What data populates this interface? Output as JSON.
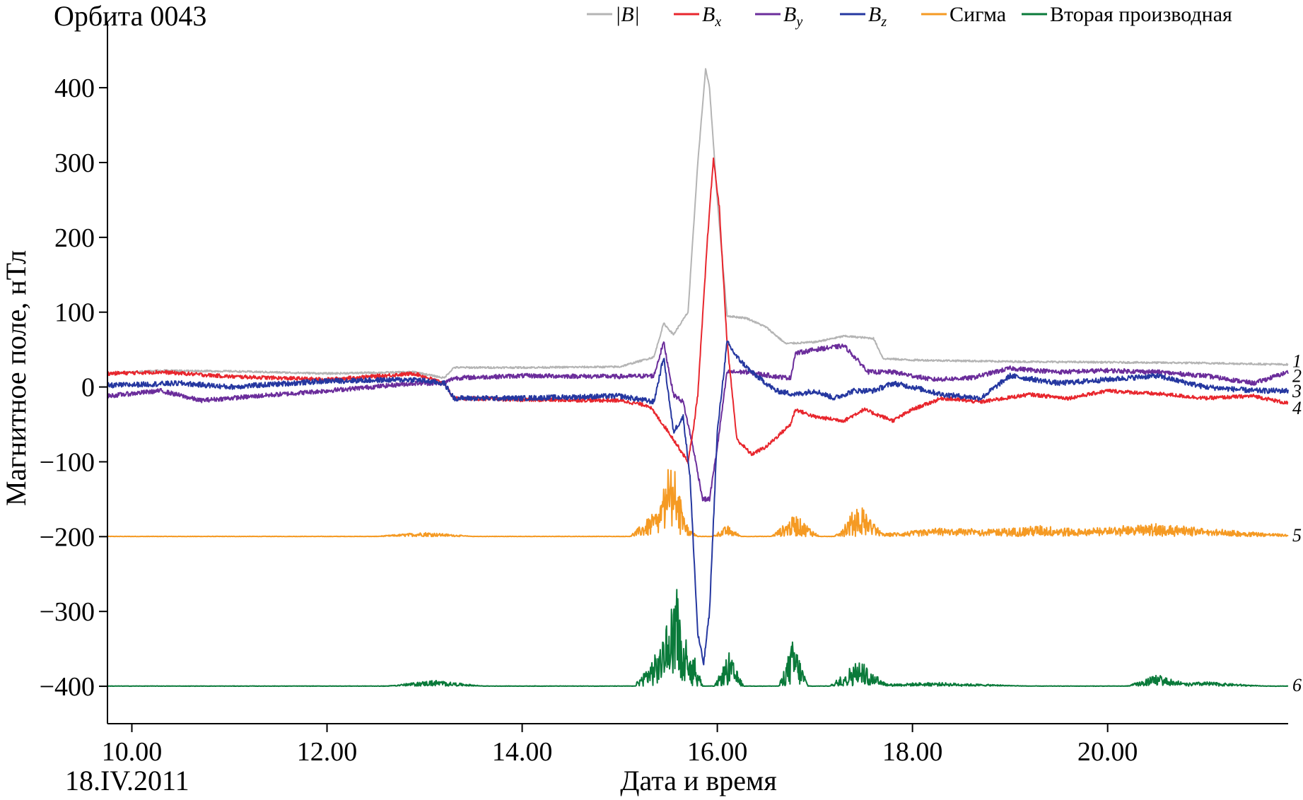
{
  "chart_data": {
    "type": "line",
    "title": "Орбита 0043",
    "xlabel": "Дата и время",
    "ylabel": "Магнитное поле, нТл",
    "date_label": "18.IV.2011",
    "xlim": [
      9.75,
      21.85
    ],
    "ylim": [
      -450,
      470
    ],
    "x_ticks": [
      10,
      12,
      14,
      16,
      18,
      20
    ],
    "x_tick_labels": [
      "10.00",
      "12.00",
      "14.00",
      "16.00",
      "18.00",
      "20.00"
    ],
    "y_ticks": [
      400,
      300,
      200,
      100,
      0,
      -100,
      -200,
      -300,
      -400
    ],
    "y_tick_labels": [
      "400",
      "300",
      "200",
      "100",
      "0",
      "−100",
      "−200",
      "−300",
      "−400"
    ],
    "grid": false,
    "legend_position": "top-right",
    "legend": [
      {
        "key": "B",
        "label_main": "|B|",
        "sub": ""
      },
      {
        "key": "Bx",
        "label_main": "B",
        "sub": "x"
      },
      {
        "key": "By",
        "label_main": "B",
        "sub": "y"
      },
      {
        "key": "Bz",
        "label_main": "B",
        "sub": "z"
      },
      {
        "key": "sigma",
        "label_main": "Сигма",
        "sub": ""
      },
      {
        "key": "d2",
        "label_main": "Вторая производная",
        "sub": ""
      }
    ],
    "curve_numbers": [
      {
        "label": "1",
        "y": 35
      },
      {
        "label": "2",
        "y": 15
      },
      {
        "label": "3",
        "y": -5
      },
      {
        "label": "4",
        "y": -28
      },
      {
        "label": "5",
        "y": -198
      },
      {
        "label": "6",
        "y": -398
      }
    ],
    "series": [
      {
        "key": "B",
        "color": "#b4b4b4",
        "noise": 1.2,
        "points": [
          [
            9.75,
            18
          ],
          [
            10.3,
            22
          ],
          [
            11.0,
            21
          ],
          [
            12.0,
            18
          ],
          [
            12.9,
            20
          ],
          [
            13.2,
            12
          ],
          [
            13.3,
            26
          ],
          [
            14.0,
            26
          ],
          [
            15.0,
            27
          ],
          [
            15.35,
            40
          ],
          [
            15.45,
            85
          ],
          [
            15.55,
            70
          ],
          [
            15.7,
            100
          ],
          [
            15.8,
            300
          ],
          [
            15.88,
            425
          ],
          [
            15.92,
            400
          ],
          [
            16.0,
            250
          ],
          [
            16.1,
            95
          ],
          [
            16.3,
            92
          ],
          [
            16.5,
            80
          ],
          [
            16.7,
            58
          ],
          [
            17.0,
            60
          ],
          [
            17.3,
            68
          ],
          [
            17.6,
            65
          ],
          [
            17.7,
            38
          ],
          [
            18.0,
            36
          ],
          [
            19.0,
            34
          ],
          [
            20.0,
            33
          ],
          [
            21.0,
            32
          ],
          [
            21.85,
            30
          ]
        ]
      },
      {
        "key": "Bx",
        "color": "#e8262d",
        "noise": 2.5,
        "points": [
          [
            9.75,
            18
          ],
          [
            10.3,
            20
          ],
          [
            11.0,
            14
          ],
          [
            12.0,
            10
          ],
          [
            12.9,
            18
          ],
          [
            13.2,
            5
          ],
          [
            13.3,
            -15
          ],
          [
            14.0,
            -17
          ],
          [
            15.0,
            -18
          ],
          [
            15.3,
            -25
          ],
          [
            15.5,
            -60
          ],
          [
            15.7,
            -100
          ],
          [
            15.75,
            -60
          ],
          [
            15.8,
            -10
          ],
          [
            15.9,
            200
          ],
          [
            15.96,
            305
          ],
          [
            16.02,
            240
          ],
          [
            16.1,
            60
          ],
          [
            16.2,
            -70
          ],
          [
            16.35,
            -90
          ],
          [
            16.5,
            -80
          ],
          [
            16.75,
            -50
          ],
          [
            16.8,
            -30
          ],
          [
            17.0,
            -40
          ],
          [
            17.3,
            -45
          ],
          [
            17.5,
            -30
          ],
          [
            17.8,
            -45
          ],
          [
            18.0,
            -30
          ],
          [
            18.3,
            -15
          ],
          [
            18.7,
            -20
          ],
          [
            19.2,
            -10
          ],
          [
            19.6,
            -15
          ],
          [
            20.0,
            -5
          ],
          [
            20.6,
            -10
          ],
          [
            21.0,
            -15
          ],
          [
            21.5,
            -12
          ],
          [
            21.85,
            -22
          ]
        ]
      },
      {
        "key": "By",
        "color": "#6b2d9b",
        "noise": 3,
        "points": [
          [
            9.75,
            -12
          ],
          [
            10.3,
            -5
          ],
          [
            10.7,
            -18
          ],
          [
            11.5,
            -10
          ],
          [
            12.0,
            -5
          ],
          [
            12.9,
            5
          ],
          [
            13.2,
            5
          ],
          [
            13.3,
            12
          ],
          [
            14.0,
            15
          ],
          [
            15.0,
            14
          ],
          [
            15.35,
            15
          ],
          [
            15.45,
            60
          ],
          [
            15.55,
            -10
          ],
          [
            15.65,
            -20
          ],
          [
            15.75,
            -80
          ],
          [
            15.85,
            -150
          ],
          [
            15.92,
            -150
          ],
          [
            16.0,
            -80
          ],
          [
            16.1,
            20
          ],
          [
            16.3,
            20
          ],
          [
            16.6,
            14
          ],
          [
            16.75,
            12
          ],
          [
            16.8,
            45
          ],
          [
            17.0,
            50
          ],
          [
            17.3,
            55
          ],
          [
            17.55,
            20
          ],
          [
            17.8,
            20
          ],
          [
            18.2,
            10
          ],
          [
            18.6,
            12
          ],
          [
            19.0,
            25
          ],
          [
            19.5,
            20
          ],
          [
            20.0,
            22
          ],
          [
            20.5,
            20
          ],
          [
            21.0,
            15
          ],
          [
            21.5,
            5
          ],
          [
            21.85,
            20
          ]
        ]
      },
      {
        "key": "Bz",
        "color": "#2537a0",
        "noise": 3.5,
        "points": [
          [
            9.75,
            2
          ],
          [
            10.5,
            5
          ],
          [
            11.0,
            0
          ],
          [
            12.0,
            8
          ],
          [
            12.9,
            10
          ],
          [
            13.2,
            5
          ],
          [
            13.3,
            -15
          ],
          [
            14.0,
            -15
          ],
          [
            15.0,
            -12
          ],
          [
            15.35,
            -20
          ],
          [
            15.45,
            40
          ],
          [
            15.55,
            -60
          ],
          [
            15.65,
            -40
          ],
          [
            15.72,
            -120
          ],
          [
            15.8,
            -330
          ],
          [
            15.86,
            -370
          ],
          [
            15.92,
            -300
          ],
          [
            16.0,
            -60
          ],
          [
            16.1,
            60
          ],
          [
            16.2,
            40
          ],
          [
            16.35,
            20
          ],
          [
            16.6,
            -5
          ],
          [
            16.8,
            -10
          ],
          [
            17.0,
            -5
          ],
          [
            17.2,
            -15
          ],
          [
            17.4,
            -5
          ],
          [
            17.6,
            -5
          ],
          [
            17.8,
            5
          ],
          [
            18.0,
            0
          ],
          [
            18.3,
            -10
          ],
          [
            18.7,
            -15
          ],
          [
            19.0,
            15
          ],
          [
            19.5,
            5
          ],
          [
            20.0,
            10
          ],
          [
            20.5,
            15
          ],
          [
            21.0,
            0
          ],
          [
            21.5,
            -5
          ],
          [
            21.85,
            -5
          ]
        ]
      },
      {
        "key": "sigma",
        "color": "#f59a23",
        "baseline": -200,
        "noise": 0.5,
        "spikes": [
          {
            "x": 13.0,
            "h": 6,
            "w": 0.5
          },
          {
            "x": 15.45,
            "h": 45,
            "w": 0.35
          },
          {
            "x": 15.55,
            "h": 85,
            "w": 0.15
          },
          {
            "x": 16.1,
            "h": 15,
            "w": 0.15
          },
          {
            "x": 16.8,
            "h": 30,
            "w": 0.25
          },
          {
            "x": 17.45,
            "h": 45,
            "w": 0.25
          },
          {
            "x": 18.2,
            "h": 10,
            "w": 0.8
          },
          {
            "x": 19.3,
            "h": 15,
            "w": 1.2
          },
          {
            "x": 20.5,
            "h": 18,
            "w": 0.8
          },
          {
            "x": 21.3,
            "h": 8,
            "w": 0.8
          }
        ]
      },
      {
        "key": "d2",
        "color": "#0a7a3a",
        "baseline": -400,
        "noise": 0.5,
        "spikes": [
          {
            "x": 13.1,
            "h": 8,
            "w": 0.5
          },
          {
            "x": 15.45,
            "h": 60,
            "w": 0.3
          },
          {
            "x": 15.58,
            "h": 115,
            "w": 0.15
          },
          {
            "x": 15.75,
            "h": 50,
            "w": 0.1
          },
          {
            "x": 16.12,
            "h": 45,
            "w": 0.15
          },
          {
            "x": 16.78,
            "h": 65,
            "w": 0.15
          },
          {
            "x": 17.45,
            "h": 35,
            "w": 0.3
          },
          {
            "x": 18.2,
            "h": 5,
            "w": 1.0
          },
          {
            "x": 20.5,
            "h": 15,
            "w": 0.3
          },
          {
            "x": 21.0,
            "h": 6,
            "w": 0.6
          }
        ]
      }
    ]
  }
}
